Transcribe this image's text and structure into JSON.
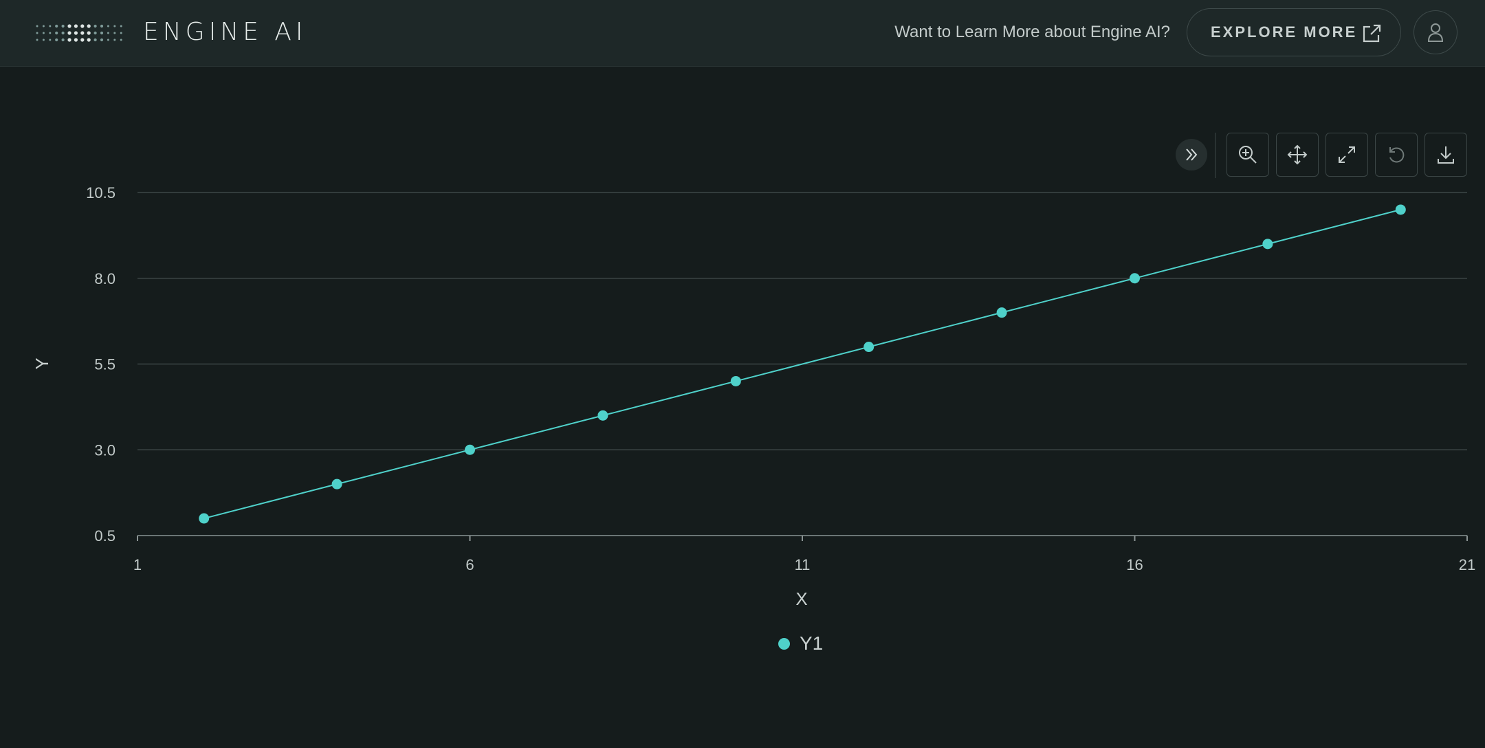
{
  "header": {
    "brand": "ENGINE AI",
    "learn_more": "Want to Learn More about Engine AI?",
    "explore_label": "EXPLORE MORE"
  },
  "toolbar": {
    "buttons": [
      "collapse-icon",
      "zoom-in-icon",
      "pan-icon",
      "expand-icon",
      "reset-icon",
      "download-icon"
    ]
  },
  "colors": {
    "background": "#151c1c",
    "header": "#1e2828",
    "series": "#4fd1ca",
    "grid": "#3d4646"
  },
  "chart_data": {
    "type": "line",
    "xlabel": "X",
    "ylabel": "Y",
    "xlim": [
      1,
      21
    ],
    "ylim": [
      0.5,
      10.5
    ],
    "xticks": [
      "1",
      "6",
      "11",
      "16",
      "21"
    ],
    "yticks": [
      "0.5",
      "3.0",
      "5.5",
      "8.0",
      "10.5"
    ],
    "grid": "horizontal",
    "legend": "bottom-center",
    "series": [
      {
        "name": "Y1",
        "color": "#4fd1ca",
        "x": [
          2,
          4,
          6,
          8,
          10,
          12,
          14,
          16,
          18,
          20
        ],
        "y": [
          1,
          2,
          3,
          4,
          5,
          6,
          7,
          8,
          9,
          10
        ]
      }
    ]
  }
}
